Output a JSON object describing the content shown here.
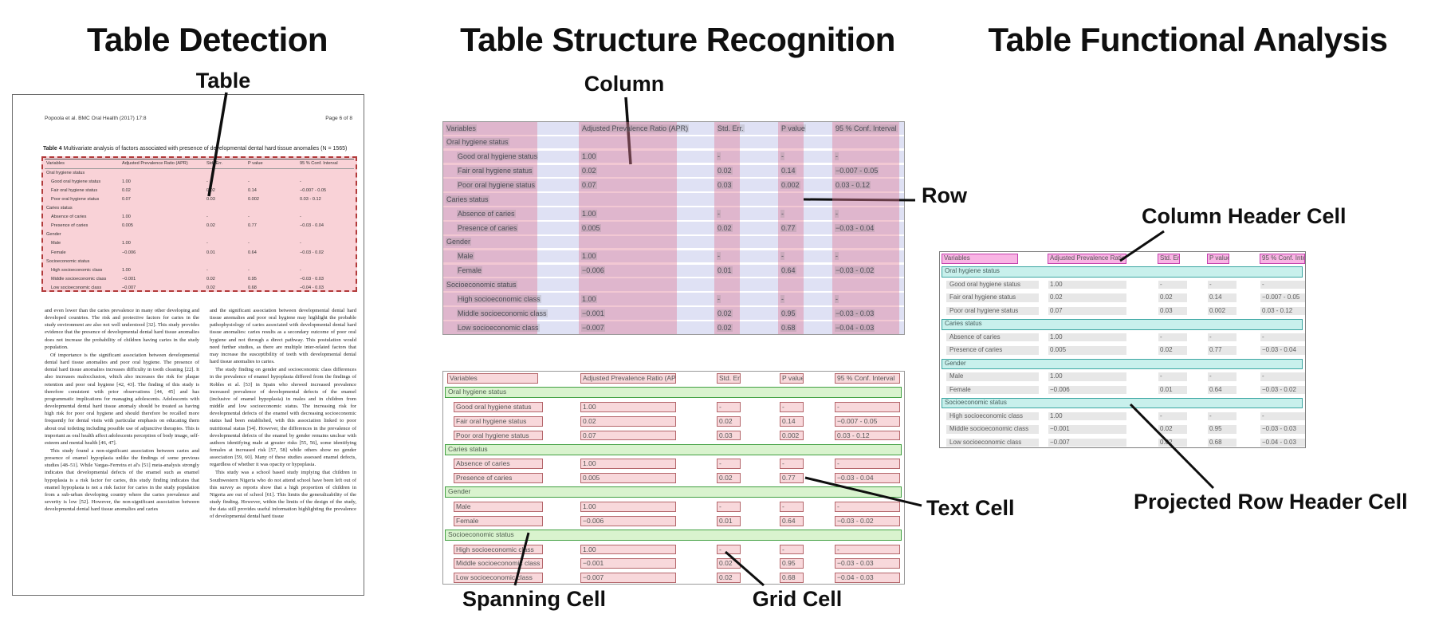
{
  "panels": {
    "detection": {
      "title": "Table Detection",
      "callouts": {
        "table": "Table"
      }
    },
    "structure": {
      "title": "Table Structure Recognition",
      "callouts": {
        "column": "Column",
        "row": "Row",
        "spanning_cell": "Spanning Cell",
        "grid_cell": "Grid Cell",
        "text_cell": "Text Cell"
      }
    },
    "functional": {
      "title": "Table Functional Analysis",
      "callouts": {
        "column_header_cell": "Column Header Cell",
        "projected_row_header_cell": "Projected Row Header Cell"
      }
    }
  },
  "document": {
    "header_left": "Popoola et al. BMC Oral Health  (2017) 17:8",
    "header_right": "Page 6 of 8",
    "table_caption_label": "Table 4",
    "table_caption": " Multivariate analysis of factors associated with presence of developmental dental hard tissue anomalies (N = 1565)",
    "body_left": [
      "and even lower than the caries prevalence in many other developing and developed countries. The risk and protective factors for caries in the study environment are also not well understood [32]. This study provides evidence that the presence of developmental dental hard tissue anomalies does not increase the probability of children having caries in the study population.",
      "Of importance is the significant association between developmental dental hard tissue anomalies and poor oral hygiene. The presence of dental hard tissue anomalies increases difficulty in tooth cleaning [22]. It also increases malocclusion, which also increases the risk for plaque retention and poor oral hygiene [42, 43]. The finding of this study is therefore consistent with prior observations [44, 45] and has programmatic implications for managing adolescents. Adolescents with developmental dental hard tissue anomaly should be treated as having high risk for poor oral hygiene and should therefore be recalled more frequently for dental visits with particular emphasis on educating them about oral toileting including possible use of adjunctive therapies. This is important as oral health affect adolescents perception of body image, self-esteem and mental health [46, 47].",
      "This study found a non-significant association between caries and presence of enamel hypoplasia unlike the findings of some previous studies [48–51]. While Vargas-Ferreira et al's [51] meta-analysis strongly indicates that developmental defects of the enamel such as enamel hypoplasia is a risk factor for caries, this study finding indicates that enamel hypoplasia is not a risk factor for caries in the study population from a sub-urban developing country where the caries prevalence and severity is low [52]. However, the non-significant association between developmental dental hard tissue anomalies and caries"
    ],
    "body_right": [
      "and the significant association between developmental dental hard tissue anomalies and poor oral hygiene may highlight the probable pathophysiology of caries associated with developmental dental hard tissue anomalies: caries results as a secondary outcome of poor oral hygiene and not through a direct pathway. This postulation would need further studies, as there are multiple inter-related factors that may increase the susceptibility of teeth with developmental dental hard tissue anomalies to caries.",
      "The study finding on gender and socioeconomic class differences in the prevalence of enamel hypoplasia differed from the findings of Robles et al. [53] in Spain who showed increased prevalence increased prevalence of developmental defects of the enamel (inclusive of enamel hypoplasia) in males and in children from middle and low socioeconomic status. The increasing risk for developmental defects of the enamel with decreasing socioeconomic status had been established, with this association linked to poor nutritional status [54]. However, the differences in the prevalence of developmental defects of the enamel by gender remains unclear with authors identifying male at greater risks [55, 56], some identifying females at increased risk [57, 58] while others show no gender association [59, 60]. Many of these studies assessed enamel defects, regardless of whether it was opacity or hypoplasia.",
      "This study was a school based study implying that children in Southwestern Nigeria who do not attend school have been left out of this survey as reports show that a high proportion of children in Nigeria are out of school [61]. This limits the generalizability of the study finding. However, within the limits of the design of the study, the data still provides useful information highlighting the prevalence of developmental dental hard tissue"
    ]
  },
  "table": {
    "columns": [
      "Variables",
      "Adjusted Prevalence Ratio (APR)",
      "Std. Err.",
      "P value",
      "95 % Conf. Interval"
    ],
    "rows": [
      {
        "type": "section",
        "label": "Oral hygiene status"
      },
      {
        "type": "data",
        "label": "Good oral hygiene status",
        "values": [
          "1.00",
          "-",
          "-",
          "-"
        ]
      },
      {
        "type": "data",
        "label": "Fair oral hygiene status",
        "values": [
          "0.02",
          "0.02",
          "0.14",
          "−0.007 - 0.05"
        ]
      },
      {
        "type": "data",
        "label": "Poor oral hygiene status",
        "values": [
          "0.07",
          "0.03",
          "0.002",
          "0.03 - 0.12"
        ]
      },
      {
        "type": "section",
        "label": "Caries status"
      },
      {
        "type": "data",
        "label": "Absence of caries",
        "values": [
          "1.00",
          "-",
          "-",
          "-"
        ]
      },
      {
        "type": "data",
        "label": "Presence of caries",
        "values": [
          "0.005",
          "0.02",
          "0.77",
          "−0.03 - 0.04"
        ]
      },
      {
        "type": "section",
        "label": "Gender"
      },
      {
        "type": "data",
        "label": "Male",
        "values": [
          "1.00",
          "-",
          "-",
          "-"
        ]
      },
      {
        "type": "data",
        "label": "Female",
        "values": [
          "−0.006",
          "0.01",
          "0.64",
          "−0.03 - 0.02"
        ]
      },
      {
        "type": "section",
        "label": "Socioeconomic status"
      },
      {
        "type": "data",
        "label": "High socioeconomic class",
        "values": [
          "1.00",
          "-",
          "-",
          "-"
        ]
      },
      {
        "type": "data",
        "label": "Middle socioeconomic class",
        "values": [
          "−0.001",
          "0.02",
          "0.95",
          "−0.03 - 0.03"
        ]
      },
      {
        "type": "data",
        "label": "Low socioeconomic class",
        "values": [
          "−0.007",
          "0.02",
          "0.68",
          "−0.04 - 0.03"
        ]
      }
    ]
  },
  "colors": {
    "detection_overlay": "rgba(243,166,175,0.50)",
    "detection_border": "#B23B3B",
    "row_band": "#DFE1F4",
    "column_band": "rgba(224,125,150,0.42)",
    "text_highlight": "rgba(128,128,128,0.22)",
    "grid_cell_fill": "#F8D8DB",
    "grid_cell_border": "#B4666B",
    "spanning_cell_fill": "#D9F3CE",
    "spanning_cell_border": "#42A042",
    "column_header_fill": "#F9B4E4",
    "column_header_border": "#C43FAE",
    "projected_header_fill": "#C8F0EC",
    "projected_header_border": "#3BA6A2",
    "text_box_fill": "#E7E7E7",
    "callout_line": "#0E0E0E"
  }
}
